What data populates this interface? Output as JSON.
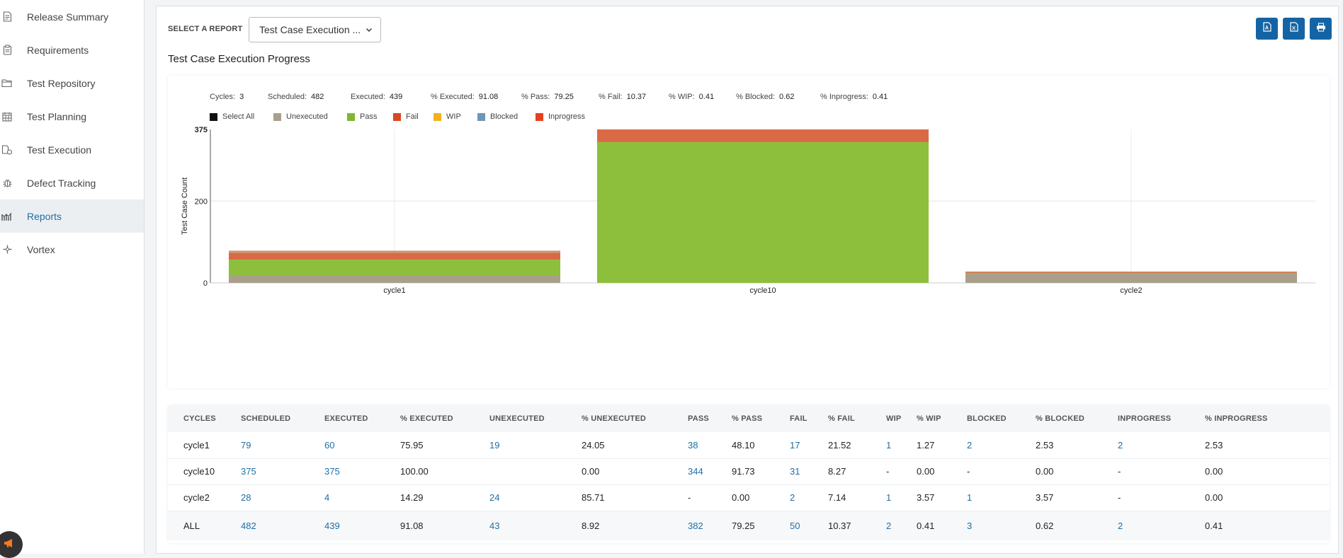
{
  "sidebar": {
    "items": [
      {
        "label": "Release Summary",
        "icon": "document-icon"
      },
      {
        "label": "Requirements",
        "icon": "clipboard-icon"
      },
      {
        "label": "Test Repository",
        "icon": "folder-icon"
      },
      {
        "label": "Test Planning",
        "icon": "calendar-icon"
      },
      {
        "label": "Test Execution",
        "icon": "execution-icon"
      },
      {
        "label": "Defect Tracking",
        "icon": "bug-icon"
      },
      {
        "label": "Reports",
        "icon": "chart-icon",
        "active": true
      },
      {
        "label": "Vortex",
        "icon": "vortex-icon"
      }
    ]
  },
  "header": {
    "select_label": "SELECT A REPORT",
    "selected_report": "Test Case Execution ...",
    "report_title": "Test Case Execution Progress"
  },
  "stats": [
    {
      "label": "Cycles:",
      "value": "3"
    },
    {
      "label": "Scheduled:",
      "value": "482"
    },
    {
      "label": "Executed:",
      "value": "439"
    },
    {
      "label": "% Executed:",
      "value": "91.08"
    },
    {
      "label": "% Pass:",
      "value": "79.25"
    },
    {
      "label": "% Fail:",
      "value": "10.37"
    },
    {
      "label": "% WIP:",
      "value": "0.41"
    },
    {
      "label": "% Blocked:",
      "value": "0.62"
    },
    {
      "label": "% Inprogress:",
      "value": "0.41"
    }
  ],
  "legend": [
    {
      "label": "Select All",
      "color": "#111111"
    },
    {
      "label": "Unexecuted",
      "color": "#a8a08a"
    },
    {
      "label": "Pass",
      "color": "#7cb82f"
    },
    {
      "label": "Fail",
      "color": "#d9481e"
    },
    {
      "label": "WIP",
      "color": "#f0b31c"
    },
    {
      "label": "Blocked",
      "color": "#6f96b8"
    },
    {
      "label": "Inprogress",
      "color": "#e8401c"
    }
  ],
  "chart_data": {
    "type": "bar",
    "stacked": true,
    "title": "",
    "xlabel": "",
    "ylabel": "Test Case Count",
    "ylim": [
      0,
      375
    ],
    "yticks": [
      0,
      200,
      375
    ],
    "categories": [
      "cycle1",
      "cycle10",
      "cycle2"
    ],
    "series": [
      {
        "name": "Unexecuted",
        "color": "#a8a08a",
        "values": [
          19,
          0,
          24
        ]
      },
      {
        "name": "Pass",
        "color": "#8dbf3c",
        "values": [
          38,
          344,
          0
        ]
      },
      {
        "name": "Fail",
        "color": "#d96a45",
        "values": [
          17,
          31,
          2
        ]
      },
      {
        "name": "WIP",
        "color": "#f0b31c",
        "values": [
          1,
          0,
          1
        ]
      },
      {
        "name": "Blocked",
        "color": "#6f96b8",
        "values": [
          2,
          0,
          1
        ]
      },
      {
        "name": "Inprogress",
        "color": "#e8a28a",
        "values": [
          2,
          0,
          0
        ]
      }
    ]
  },
  "table": {
    "columns": [
      "CYCLES",
      "SCHEDULED",
      "EXECUTED",
      "% EXECUTED",
      "UNEXECUTED",
      "% UNEXECUTED",
      "PASS",
      "% PASS",
      "FAIL",
      "% FAIL",
      "WIP",
      "% WIP",
      "BLOCKED",
      "% BLOCKED",
      "INPROGRESS",
      "% INPROGRESS"
    ],
    "rows": [
      [
        "cycle1",
        "79",
        "60",
        "75.95",
        "19",
        "24.05",
        "38",
        "48.10",
        "17",
        "21.52",
        "1",
        "1.27",
        "2",
        "2.53",
        "2",
        "2.53"
      ],
      [
        "cycle10",
        "375",
        "375",
        "100.00",
        "",
        "0.00",
        "344",
        "91.73",
        "31",
        "8.27",
        "-",
        "0.00",
        "-",
        "0.00",
        "-",
        "0.00"
      ],
      [
        "cycle2",
        "28",
        "4",
        "14.29",
        "24",
        "85.71",
        "-",
        "0.00",
        "2",
        "7.14",
        "1",
        "3.57",
        "1",
        "3.57",
        "-",
        "0.00"
      ],
      [
        "ALL",
        "482",
        "439",
        "91.08",
        "43",
        "8.92",
        "382",
        "79.25",
        "50",
        "10.37",
        "2",
        "0.41",
        "3",
        "0.62",
        "2",
        "0.41"
      ]
    ]
  }
}
